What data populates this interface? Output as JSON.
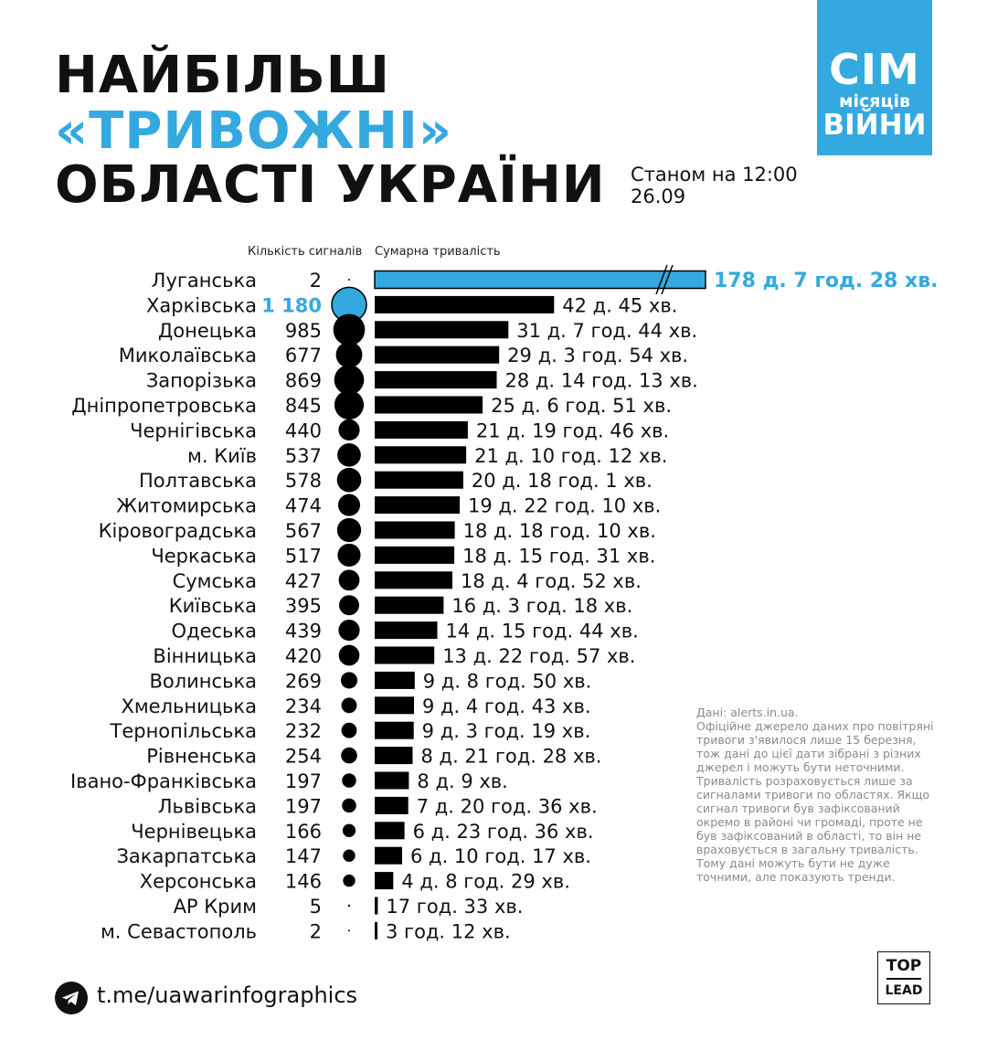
{
  "title": {
    "line1": "НАЙБІЛЬШ",
    "line2": "«ТРИВОЖНІ»",
    "line3": "ОБЛАСТІ УКРАЇНИ"
  },
  "date": {
    "line1": "Станом на 12:00",
    "line2": "26.09"
  },
  "logo": {
    "line1": "СІМ",
    "line2": "місяців",
    "line3": "ВІЙНИ"
  },
  "colors": {
    "accent": "#34a9df",
    "bar": "#000000",
    "text": "#111111",
    "note": "#8a8a8a"
  },
  "chart_data": {
    "type": "bar",
    "column_labels": {
      "signals": "Кількість сигналів",
      "duration": "Сумарна тривалість"
    },
    "rows": [
      {
        "region": "Луганська",
        "signals": 2,
        "signals_label": "2",
        "duration_label": "178 д. 7 год. 28 хв.",
        "duration_days": 178.31,
        "highlight": true,
        "axis_break": true
      },
      {
        "region": "Харківська",
        "signals": 1180,
        "signals_label": "1 180",
        "duration_label": "42 д. 45 хв.",
        "duration_days": 42.03,
        "highlight_signals": true
      },
      {
        "region": "Донецька",
        "signals": 985,
        "signals_label": "985",
        "duration_label": "31 д. 7 год. 44 хв.",
        "duration_days": 31.32
      },
      {
        "region": "Миколаївська",
        "signals": 677,
        "signals_label": "677",
        "duration_label": "29 д. 3 год. 54 хв.",
        "duration_days": 29.16
      },
      {
        "region": "Запорізька",
        "signals": 869,
        "signals_label": "869",
        "duration_label": "28 д. 14 год. 13 хв.",
        "duration_days": 28.59
      },
      {
        "region": "Дніпропетровська",
        "signals": 845,
        "signals_label": "845",
        "duration_label": "25 д. 6 год. 51 хв.",
        "duration_days": 25.29
      },
      {
        "region": "Чернігівська",
        "signals": 440,
        "signals_label": "440",
        "duration_label": "21 д. 19 год. 46 хв.",
        "duration_days": 21.82
      },
      {
        "region": "м. Київ",
        "signals": 537,
        "signals_label": "537",
        "duration_label": "21 д. 10 год. 12 хв.",
        "duration_days": 21.43
      },
      {
        "region": "Полтавська",
        "signals": 578,
        "signals_label": "578",
        "duration_label": "20 д. 18 год. 1 хв.",
        "duration_days": 20.75
      },
      {
        "region": "Житомирська",
        "signals": 474,
        "signals_label": "474",
        "duration_label": "19 д. 22 год. 10 хв.",
        "duration_days": 19.92
      },
      {
        "region": "Кіровоградська",
        "signals": 567,
        "signals_label": "567",
        "duration_label": "18 д. 18 год. 10 хв.",
        "duration_days": 18.76
      },
      {
        "region": "Черкаська",
        "signals": 517,
        "signals_label": "517",
        "duration_label": "18 д. 15 год. 31 хв.",
        "duration_days": 18.65
      },
      {
        "region": "Сумська",
        "signals": 427,
        "signals_label": "427",
        "duration_label": "18 д. 4 год. 52 хв.",
        "duration_days": 18.2
      },
      {
        "region": "Київська",
        "signals": 395,
        "signals_label": "395",
        "duration_label": "16 д. 3 год. 18 хв.",
        "duration_days": 16.14
      },
      {
        "region": "Одеська",
        "signals": 439,
        "signals_label": "439",
        "duration_label": "14 д. 15 год. 44 хв.",
        "duration_days": 14.66
      },
      {
        "region": "Вінницька",
        "signals": 420,
        "signals_label": "420",
        "duration_label": "13 д. 22 год. 57 хв.",
        "duration_days": 13.96
      },
      {
        "region": "Волинська",
        "signals": 269,
        "signals_label": "269",
        "duration_label": "9 д. 8 год. 50 хв.",
        "duration_days": 9.37
      },
      {
        "region": "Хмельницька",
        "signals": 234,
        "signals_label": "234",
        "duration_label": "9 д. 4 год. 43 хв.",
        "duration_days": 9.2
      },
      {
        "region": "Тернопільська",
        "signals": 232,
        "signals_label": "232",
        "duration_label": "9 д. 3 год. 19 хв.",
        "duration_days": 9.14
      },
      {
        "region": "Рівненська",
        "signals": 254,
        "signals_label": "254",
        "duration_label": "8 д. 21 год. 28 хв.",
        "duration_days": 8.89
      },
      {
        "region": "Івано-Франківська",
        "signals": 197,
        "signals_label": "197",
        "duration_label": "8 д. 9 хв.",
        "duration_days": 8.01
      },
      {
        "region": "Львівська",
        "signals": 197,
        "signals_label": "197",
        "duration_label": "7 д. 20 год. 36 хв.",
        "duration_days": 7.86
      },
      {
        "region": "Чернівецька",
        "signals": 166,
        "signals_label": "166",
        "duration_label": "6 д. 23 год. 36 хв.",
        "duration_days": 6.98
      },
      {
        "region": "Закарпатська",
        "signals": 147,
        "signals_label": "147",
        "duration_label": "6 д. 10 год. 17 хв.",
        "duration_days": 6.43
      },
      {
        "region": "Херсонська",
        "signals": 146,
        "signals_label": "146",
        "duration_label": "4 д. 8 год. 29 хв.",
        "duration_days": 4.35
      },
      {
        "region": "АР Крим",
        "signals": 5,
        "signals_label": "5",
        "duration_label": "17 год. 33 хв.",
        "duration_days": 0.73
      },
      {
        "region": "м. Севастополь",
        "signals": 2,
        "signals_label": "2",
        "duration_label": "3 год. 12 хв.",
        "duration_days": 0.13
      }
    ]
  },
  "note": {
    "source": "Дані: alerts.in.ua.",
    "text1": "Офіційне джерело даних про повітряні тривоги з'явилося лише 15 березня, тож дані до цієї дати зібрані з різних джерел і можуть бути неточними.",
    "text2": "Тривалість розраховується лише за сигналами тривоги по областях. Якщо сигнал тривоги був зафіксований окремо в районі чи громаді, проте не був зафіксований в області, то він не враховується в загальну тривалість. Тому дані можуть бути не дуже точними, але показують тренди."
  },
  "footer": {
    "link": "t.me/uawarinfographics",
    "brand_top": "TOP",
    "brand_bottom": "LEAD",
    "telegram_icon": "telegram-icon"
  }
}
